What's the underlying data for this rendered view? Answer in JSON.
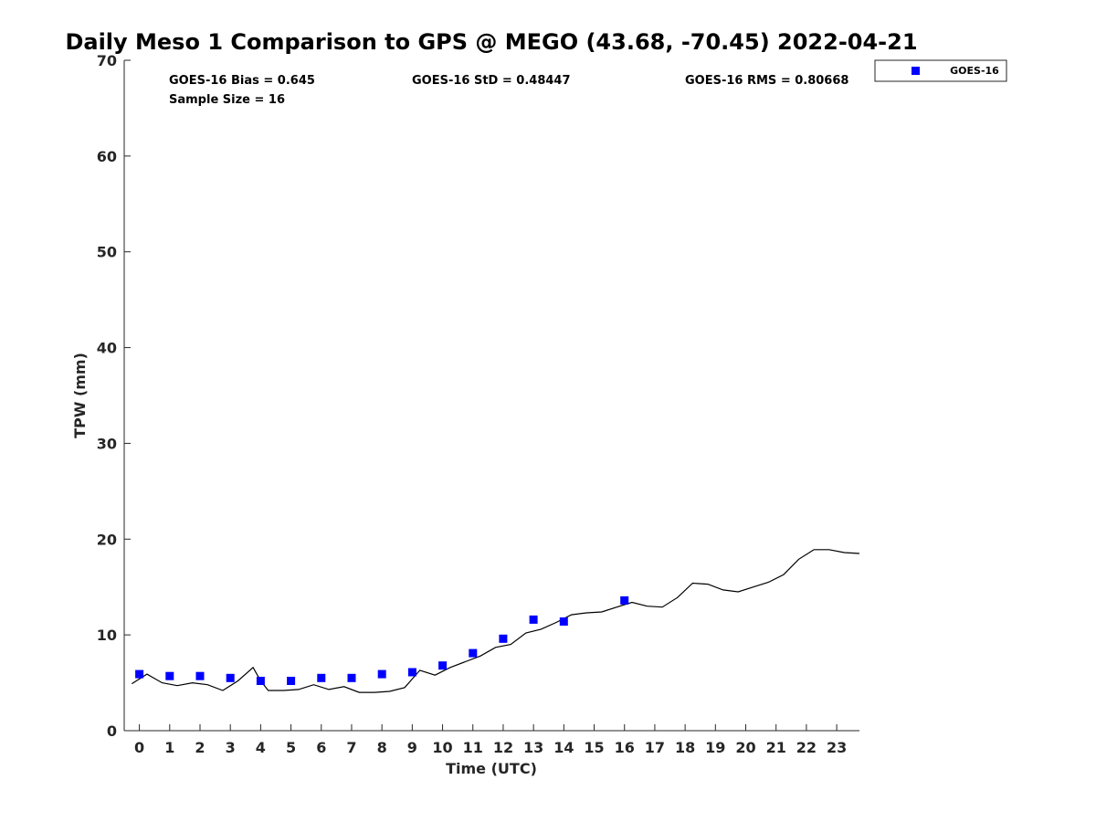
{
  "chart_data": {
    "type": "scatter",
    "title": "Daily Meso 1 Comparison to GPS @ MEGO (43.68, -70.45) 2022-04-21",
    "xlabel": "Time (UTC)",
    "ylabel": "TPW (mm)",
    "xlim": [
      -0.5,
      23.75
    ],
    "ylim": [
      0,
      70
    ],
    "x_ticks": [
      0,
      1,
      2,
      3,
      4,
      5,
      6,
      7,
      8,
      9,
      10,
      11,
      12,
      13,
      14,
      15,
      16,
      17,
      18,
      19,
      20,
      21,
      22,
      23
    ],
    "y_ticks": [
      0,
      10,
      20,
      30,
      40,
      50,
      60,
      70
    ],
    "grid": false,
    "legend_position": "top-right outside",
    "stats": {
      "bias": "GOES-16 Bias = 0.645",
      "sample_size": "Sample Size = 16",
      "std": "GOES-16 StD = 0.48447",
      "rms": "GOES-16 RMS = 0.80668"
    },
    "series": [
      {
        "name": "GOES-16",
        "kind": "scatter",
        "marker": "square",
        "color": "#0000ff",
        "x": [
          0,
          1,
          2,
          3,
          4,
          5,
          6,
          7,
          8,
          9,
          10,
          11,
          12,
          13,
          14,
          16
        ],
        "y": [
          5.9,
          5.7,
          5.7,
          5.5,
          5.2,
          5.2,
          5.5,
          5.5,
          5.9,
          6.1,
          6.8,
          8.1,
          9.6,
          11.6,
          11.4,
          13.6
        ]
      },
      {
        "kind": "line",
        "color": "#000000",
        "x": [
          -0.25,
          0.25,
          0.75,
          1.25,
          1.75,
          2.25,
          2.75,
          3.25,
          3.75,
          4.0,
          4.25,
          4.75,
          5.25,
          5.75,
          6.25,
          6.75,
          7.25,
          7.75,
          8.25,
          8.75,
          9.25,
          9.75,
          10.25,
          10.75,
          11.25,
          11.75,
          12.25,
          12.75,
          13.25,
          13.75,
          14.25,
          14.75,
          15.25,
          15.75,
          16.25,
          16.75,
          17.25,
          17.75,
          18.25,
          18.75,
          19.25,
          19.75,
          20.25,
          20.75,
          21.25,
          21.75,
          22.25,
          22.75,
          23.25,
          23.75
        ],
        "y": [
          4.9,
          5.9,
          5.0,
          4.7,
          5.0,
          4.8,
          4.2,
          5.2,
          6.6,
          5.2,
          4.2,
          4.2,
          4.3,
          4.8,
          4.3,
          4.6,
          4.0,
          4.0,
          4.1,
          4.5,
          6.3,
          5.8,
          6.6,
          7.2,
          7.8,
          8.7,
          9.0,
          10.2,
          10.6,
          11.3,
          12.1,
          12.3,
          12.4,
          12.9,
          13.4,
          13.0,
          12.9,
          13.9,
          15.4,
          15.3,
          14.7,
          14.5,
          15.0,
          15.5,
          16.3,
          17.9,
          18.9,
          18.9,
          18.6,
          18.5
        ]
      }
    ]
  }
}
